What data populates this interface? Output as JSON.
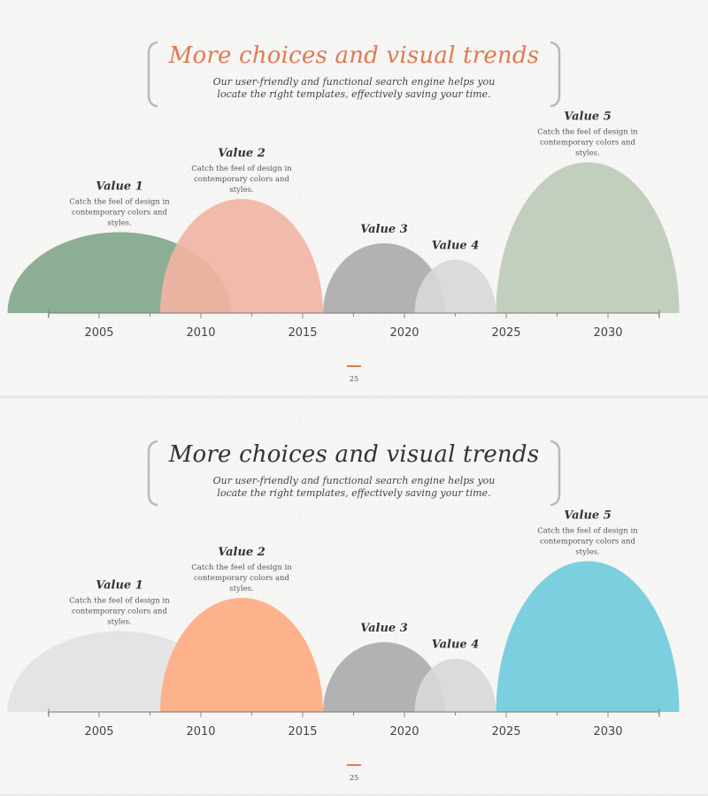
{
  "slides": [
    {
      "title": "More choices and visual trends",
      "title_color": "#e07a52",
      "subtitle": "Our user-friendly and functional search engine helps you locate the right templates, effectively saving your time.",
      "page_number": "25",
      "colors": [
        "#81a68a",
        "#f2b4a2",
        "#ababab",
        "#d8d8d8",
        "#bccab8"
      ]
    },
    {
      "title": "More choices and visual trends",
      "title_color": "#333333",
      "subtitle": "Our user-friendly and functional search engine helps you locate the right templates, effectively saving your time.",
      "page_number": "25",
      "colors": [
        "#e2e2e2",
        "#ffab7f",
        "#ababab",
        "#d8d8d8",
        "#6fcbdb"
      ]
    }
  ],
  "chart_data": [
    {
      "type": "area",
      "x_ticks": [
        "2005",
        "2010",
        "2015",
        "2020",
        "2025",
        "2030"
      ],
      "series": [
        {
          "name": "Value 1",
          "description": "Catch the feel of design in contemporary colors and styles.",
          "x_range": [
            2000.5,
            2011.5
          ],
          "peak": 0.44
        },
        {
          "name": "Value 2",
          "description": "Catch the feel of design in contemporary colors and styles.",
          "x_range": [
            2008,
            2016
          ],
          "peak": 0.62
        },
        {
          "name": "Value 3",
          "description": "",
          "x_range": [
            2016,
            2022
          ],
          "peak": 0.38
        },
        {
          "name": "Value 4",
          "description": "",
          "x_range": [
            2020.5,
            2024.5
          ],
          "peak": 0.29
        },
        {
          "name": "Value 5",
          "description": "Catch the feel of design in contemporary colors and styles.",
          "x_range": [
            2024.5,
            2033.5
          ],
          "peak": 0.82
        }
      ]
    },
    {
      "type": "area",
      "x_ticks": [
        "2005",
        "2010",
        "2015",
        "2020",
        "2025",
        "2030"
      ],
      "series": [
        {
          "name": "Value 1",
          "description": "Catch the feel of design in contemporary colors and styles.",
          "x_range": [
            2000.5,
            2011.5
          ],
          "peak": 0.44
        },
        {
          "name": "Value 2",
          "description": "Catch the feel of design in contemporary colors and styles.",
          "x_range": [
            2008,
            2016
          ],
          "peak": 0.62
        },
        {
          "name": "Value 3",
          "description": "",
          "x_range": [
            2016,
            2022
          ],
          "peak": 0.38
        },
        {
          "name": "Value 4",
          "description": "",
          "x_range": [
            2020.5,
            2024.5
          ],
          "peak": 0.29
        },
        {
          "name": "Value 5",
          "description": "Catch the feel of design in contemporary colors and styles.",
          "x_range": [
            2024.5,
            2033.5
          ],
          "peak": 0.82
        }
      ]
    }
  ]
}
